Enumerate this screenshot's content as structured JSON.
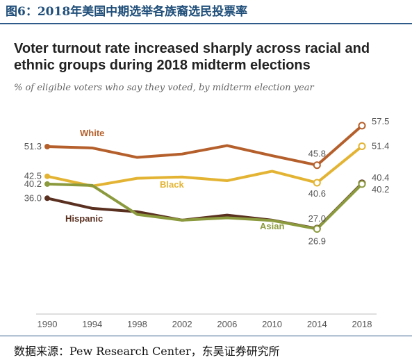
{
  "figure_label": "图6：2018年美国中期选举各族裔选民投票率",
  "source": "数据来源：Pew Research Center，东吴证券研究所",
  "chart_data": {
    "type": "line",
    "title": "Voter turnout rate increased sharply across racial and ethnic groups during 2018 midterm elections",
    "subtitle": "% of eligible voters who say they voted, by midterm election year",
    "x": [
      1990,
      1994,
      1998,
      2002,
      2006,
      2010,
      2014,
      2018
    ],
    "ylim": [
      0,
      60
    ],
    "grid": false,
    "series": [
      {
        "name": "White",
        "color": "#b5602c",
        "values": [
          51.3,
          50.9,
          48.1,
          49.1,
          51.6,
          48.6,
          45.8,
          57.5
        ],
        "start_label": "51.3",
        "end_labels": [
          "45.8",
          "57.5"
        ]
      },
      {
        "name": "Black",
        "color": "#e3b434",
        "values": [
          42.5,
          39.6,
          41.9,
          42.3,
          41.2,
          44.0,
          40.6,
          51.4
        ],
        "start_label": "42.5",
        "end_labels": [
          "40.6",
          "51.4"
        ]
      },
      {
        "name": "Hispanic",
        "color": "#5a3020",
        "values": [
          36.0,
          33.0,
          32.0,
          29.5,
          31.0,
          29.5,
          27.0,
          40.4
        ],
        "start_label": "36.0",
        "end_labels": [
          "27.0",
          "40.4"
        ]
      },
      {
        "name": "Asian",
        "color": "#8c9a3e",
        "values": [
          40.2,
          39.8,
          31.2,
          29.5,
          30.2,
          29.4,
          26.9,
          40.2
        ],
        "start_label": "40.2",
        "end_labels": [
          "26.9",
          "40.2"
        ]
      }
    ]
  }
}
